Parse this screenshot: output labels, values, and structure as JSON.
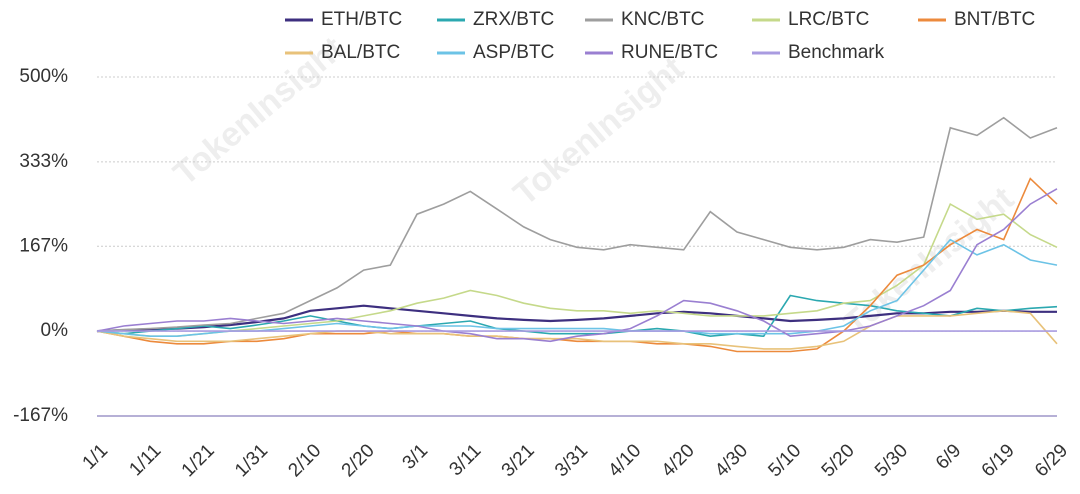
{
  "watermark": "TokenInsight",
  "chart_data": {
    "type": "line",
    "categories": [
      "1/1",
      null,
      "1/11",
      null,
      "1/21",
      null,
      "1/31",
      null,
      "2/10",
      null,
      "2/20",
      null,
      "3/1",
      null,
      "3/11",
      null,
      "3/21",
      null,
      "3/31",
      null,
      "4/10",
      null,
      "4/20",
      null,
      "4/30",
      null,
      "5/10",
      null,
      "5/20",
      null,
      "5/30",
      null,
      "6/9",
      null,
      "6/19",
      null,
      "6/29"
    ],
    "ylim": [
      -167,
      500
    ],
    "yticks": [
      {
        "value": -167,
        "label": "-167%"
      },
      {
        "value": 0,
        "label": "0%"
      },
      {
        "value": 167,
        "label": "167%"
      },
      {
        "value": 333,
        "label": "333%"
      },
      {
        "value": 500,
        "label": "500%"
      }
    ],
    "grid": true,
    "series": [
      {
        "name": "ETH/BTC",
        "color": "#3d2f7f",
        "values": [
          0,
          2,
          4,
          5,
          8,
          12,
          18,
          25,
          40,
          45,
          50,
          45,
          40,
          35,
          30,
          25,
          22,
          20,
          22,
          25,
          30,
          35,
          38,
          35,
          30,
          25,
          20,
          22,
          25,
          30,
          35,
          35,
          38,
          38,
          40,
          38,
          38
        ]
      },
      {
        "name": "ZRX/BTC",
        "color": "#2ba8b0",
        "values": [
          0,
          -5,
          0,
          5,
          10,
          5,
          12,
          20,
          30,
          20,
          10,
          5,
          10,
          15,
          20,
          5,
          0,
          -5,
          -5,
          -5,
          0,
          5,
          0,
          -10,
          -5,
          -10,
          70,
          60,
          55,
          50,
          40,
          35,
          30,
          45,
          40,
          45,
          48
        ]
      },
      {
        "name": "KNC/BTC",
        "color": "#9e9e9e",
        "values": [
          0,
          3,
          5,
          8,
          12,
          15,
          25,
          35,
          60,
          85,
          120,
          130,
          230,
          250,
          275,
          240,
          205,
          180,
          165,
          160,
          170,
          165,
          160,
          235,
          195,
          180,
          165,
          160,
          165,
          180,
          175,
          185,
          400,
          385,
          420,
          380,
          400
        ]
      },
      {
        "name": "LRC/BTC",
        "color": "#c5d98a",
        "values": [
          0,
          -5,
          -10,
          -10,
          -5,
          0,
          5,
          10,
          15,
          20,
          30,
          40,
          55,
          65,
          80,
          70,
          55,
          45,
          40,
          40,
          35,
          40,
          35,
          30,
          30,
          30,
          35,
          40,
          55,
          60,
          90,
          130,
          250,
          220,
          230,
          190,
          165
        ]
      },
      {
        "name": "BNT/BTC",
        "color": "#ec8a3c",
        "values": [
          0,
          -10,
          -20,
          -25,
          -25,
          -20,
          -20,
          -15,
          -5,
          -5,
          -5,
          0,
          -5,
          -5,
          -10,
          -10,
          -15,
          -15,
          -20,
          -20,
          -20,
          -25,
          -25,
          -30,
          -40,
          -40,
          -40,
          -35,
          0,
          50,
          110,
          130,
          170,
          200,
          180,
          300,
          250
        ]
      },
      {
        "name": "BAL/BTC",
        "color": "#e8c27a",
        "values": [
          0,
          -10,
          -15,
          -20,
          -20,
          -20,
          -15,
          -10,
          -5,
          0,
          0,
          -5,
          -5,
          -5,
          -10,
          -10,
          -15,
          -15,
          -15,
          -20,
          -20,
          -20,
          -25,
          -25,
          -30,
          -35,
          -35,
          -30,
          -20,
          10,
          30,
          30,
          30,
          35,
          40,
          35,
          -25
        ]
      },
      {
        "name": "ASP/BTC",
        "color": "#6cc3e6",
        "values": [
          0,
          -5,
          -10,
          -10,
          -5,
          0,
          0,
          5,
          10,
          15,
          10,
          5,
          10,
          10,
          10,
          5,
          5,
          5,
          5,
          5,
          0,
          0,
          0,
          -5,
          -5,
          -5,
          -5,
          0,
          10,
          40,
          60,
          120,
          180,
          150,
          170,
          140,
          130
        ]
      },
      {
        "name": "RUNE/BTC",
        "color": "#9a7fd1",
        "values": [
          0,
          10,
          15,
          20,
          20,
          25,
          20,
          15,
          20,
          25,
          20,
          15,
          10,
          0,
          -5,
          -15,
          -15,
          -20,
          -10,
          -5,
          5,
          30,
          60,
          55,
          40,
          20,
          -10,
          -5,
          0,
          10,
          30,
          50,
          80,
          170,
          200,
          250,
          280
        ]
      },
      {
        "name": "Benchmark",
        "color": "#a99be0",
        "values": [
          0,
          0,
          0,
          0,
          0,
          0,
          0,
          0,
          0,
          0,
          0,
          0,
          0,
          0,
          0,
          0,
          0,
          0,
          0,
          0,
          0,
          0,
          0,
          0,
          0,
          0,
          0,
          0,
          0,
          0,
          0,
          0,
          0,
          0,
          0,
          0,
          0
        ]
      }
    ]
  }
}
